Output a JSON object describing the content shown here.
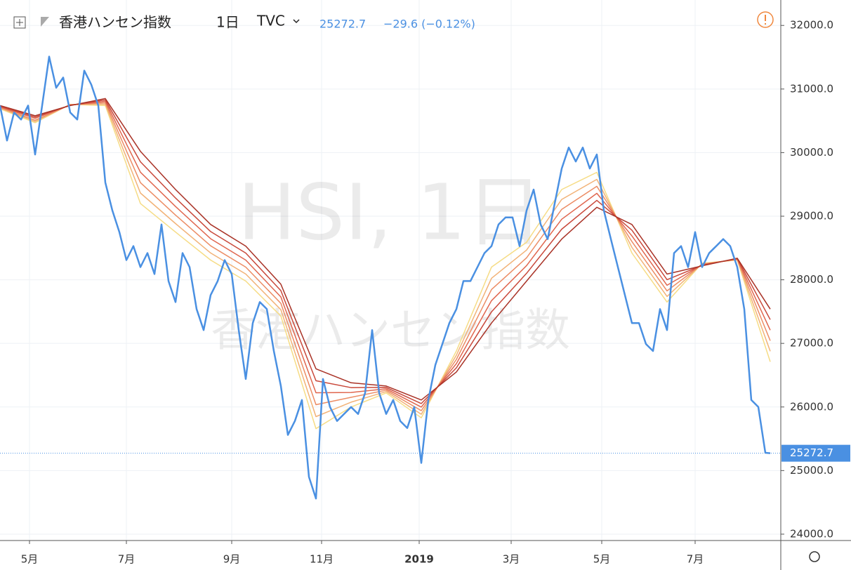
{
  "chart_data": {
    "type": "line",
    "symbol": "香港ハンセン指数",
    "interval": "1日",
    "source": "TVC",
    "last_price": 25272.7,
    "change": "−29.6 (−0.12%)",
    "watermark": "HSI, 1日",
    "color": "#4a90e2",
    "x": [
      0,
      1,
      2,
      3,
      4,
      5,
      6,
      7,
      8,
      9,
      10,
      11,
      12,
      13,
      14,
      15,
      16,
      17,
      18,
      19,
      20,
      21,
      22,
      23,
      24,
      25,
      26,
      27,
      28,
      29,
      30,
      31,
      32,
      33,
      34,
      35,
      36,
      37,
      38,
      39,
      40,
      41,
      42,
      43,
      44,
      45,
      46,
      47,
      48,
      49,
      50,
      51,
      52,
      53,
      54,
      55,
      56,
      57,
      58,
      59,
      60,
      61,
      62,
      63,
      64,
      65,
      66,
      67,
      68,
      69,
      70,
      71,
      72,
      73,
      74,
      75,
      76,
      77,
      78,
      79,
      80,
      81,
      82,
      83,
      84,
      85,
      86,
      87,
      88,
      89,
      90,
      91,
      92,
      93,
      94,
      95,
      96,
      97,
      98,
      99,
      100,
      101,
      102,
      103,
      104,
      105,
      106,
      107,
      108,
      109,
      109.7
    ],
    "values": [
      30740,
      30190,
      30630,
      30520,
      30740,
      29970,
      30740,
      31510,
      31020,
      31180,
      30630,
      30520,
      31290,
      31070,
      30740,
      29530,
      29090,
      28750,
      28310,
      28530,
      28200,
      28420,
      28090,
      28870,
      27980,
      27650,
      28420,
      28200,
      27540,
      27210,
      27760,
      27980,
      28310,
      28090,
      27210,
      26440,
      27320,
      27650,
      27540,
      26880,
      26330,
      25560,
      25780,
      26110,
      24900,
      24560,
      26440,
      26000,
      25780,
      25890,
      26000,
      25890,
      26220,
      27210,
      26220,
      25890,
      26110,
      25780,
      25670,
      26000,
      25120,
      26110,
      26660,
      26990,
      27320,
      27540,
      27980,
      27980,
      28200,
      28420,
      28530,
      28870,
      28980,
      28980,
      28530,
      29090,
      29420,
      28870,
      28640,
      29200,
      29750,
      30080,
      29860,
      30080,
      29750,
      29970,
      29090,
      28640,
      28200,
      27760,
      27320,
      27320,
      26990,
      26880,
      27540,
      27210,
      28420,
      28530,
      28200,
      28750,
      28200,
      28420,
      28530,
      28640,
      28530,
      28200,
      27540,
      26110,
      26000,
      25280,
      25272.7
    ],
    "ribbon_x": [
      0,
      5,
      10,
      15,
      20,
      25,
      30,
      35,
      40,
      45,
      50,
      55,
      60,
      65,
      70,
      75,
      80,
      85,
      90,
      95,
      100,
      105,
      109.7
    ],
    "ribbons": [
      {
        "color": "#a93226",
        "values": [
          30740,
          30580,
          30740,
          30850,
          30020,
          29420,
          28870,
          28530,
          27930,
          26600,
          26380,
          26330,
          26110,
          26550,
          27320,
          27980,
          28640,
          29140,
          28870,
          28090,
          28220,
          28340,
          27540
        ]
      },
      {
        "color": "#c9483a",
        "values": [
          30730,
          30560,
          30744,
          30828,
          29856,
          29286,
          28758,
          28420,
          27830,
          26412,
          26304,
          26308,
          26054,
          26616,
          27496,
          28102,
          28796,
          29250,
          28780,
          28002,
          28228,
          28334,
          27374
        ]
      },
      {
        "color": "#e0664e",
        "values": [
          30720,
          30540,
          30748,
          30806,
          29692,
          29152,
          28646,
          28310,
          27730,
          26224,
          26228,
          26286,
          25998,
          26682,
          27672,
          28224,
          28952,
          29360,
          28690,
          27914,
          28236,
          28328,
          27208
        ]
      },
      {
        "color": "#ec8c64",
        "values": [
          30710,
          30510,
          30752,
          30784,
          29528,
          29018,
          28534,
          28200,
          27630,
          26036,
          26152,
          26264,
          25942,
          26748,
          27848,
          28346,
          29108,
          29470,
          28600,
          27826,
          28244,
          28322,
          27042
        ]
      },
      {
        "color": "#f2b277",
        "values": [
          30700,
          30490,
          30756,
          30762,
          29364,
          28884,
          28422,
          28090,
          27530,
          25848,
          26076,
          26242,
          25886,
          26814,
          28024,
          28468,
          29264,
          29580,
          28510,
          27738,
          28252,
          28316,
          26876
        ]
      },
      {
        "color": "#f6dc85",
        "values": [
          30690,
          30470,
          30760,
          30740,
          29200,
          28750,
          28310,
          27980,
          27430,
          25660,
          26000,
          26220,
          25830,
          26880,
          28200,
          28590,
          29420,
          29690,
          28420,
          27650,
          28260,
          28310,
          26710
        ]
      }
    ],
    "xlim": [
      0,
      111.2
    ],
    "xticks": [
      {
        "value": 4.2,
        "label": "5月"
      },
      {
        "value": 18,
        "label": "7月"
      },
      {
        "value": 33,
        "label": "9月"
      },
      {
        "value": 45.8,
        "label": "11月"
      },
      {
        "value": 59.7,
        "label": "2019"
      },
      {
        "value": 72.8,
        "label": "3月"
      },
      {
        "value": 85.7,
        "label": "5月"
      },
      {
        "value": 99,
        "label": "7月"
      }
    ],
    "ylim": [
      23900,
      32400
    ],
    "yticks": [
      {
        "value": 24000,
        "label": "24000.0"
      },
      {
        "value": 25000,
        "label": "25000.0"
      },
      {
        "value": 26000,
        "label": "26000.0"
      },
      {
        "value": 27000,
        "label": "27000.0"
      },
      {
        "value": 28000,
        "label": "28000.0"
      },
      {
        "value": 29000,
        "label": "29000.0"
      },
      {
        "value": 30000,
        "label": "30000.0"
      },
      {
        "value": 31000,
        "label": "31000.0"
      },
      {
        "value": 32000,
        "label": "32000.0"
      }
    ],
    "grid": true
  }
}
